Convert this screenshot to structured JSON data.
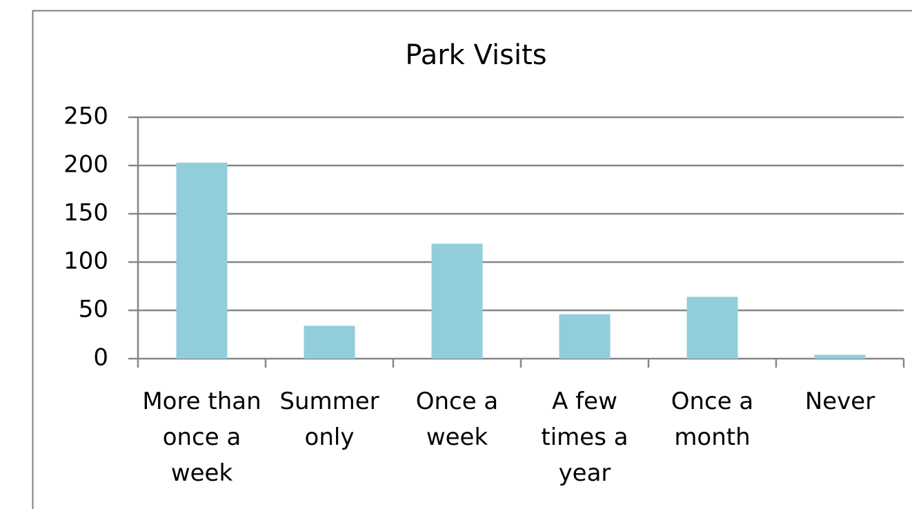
{
  "chart_data": {
    "type": "bar",
    "title": "Park Visits",
    "categories": [
      "More than once a week",
      "Summer only",
      "Once a week",
      "A few times a year",
      "Once a month",
      "Never"
    ],
    "values": [
      203,
      34,
      119,
      46,
      64,
      4
    ],
    "color": "#92cddc",
    "ylim": [
      0,
      250
    ],
    "yticks": [
      0,
      50,
      100,
      150,
      200,
      250
    ],
    "grid": true
  }
}
